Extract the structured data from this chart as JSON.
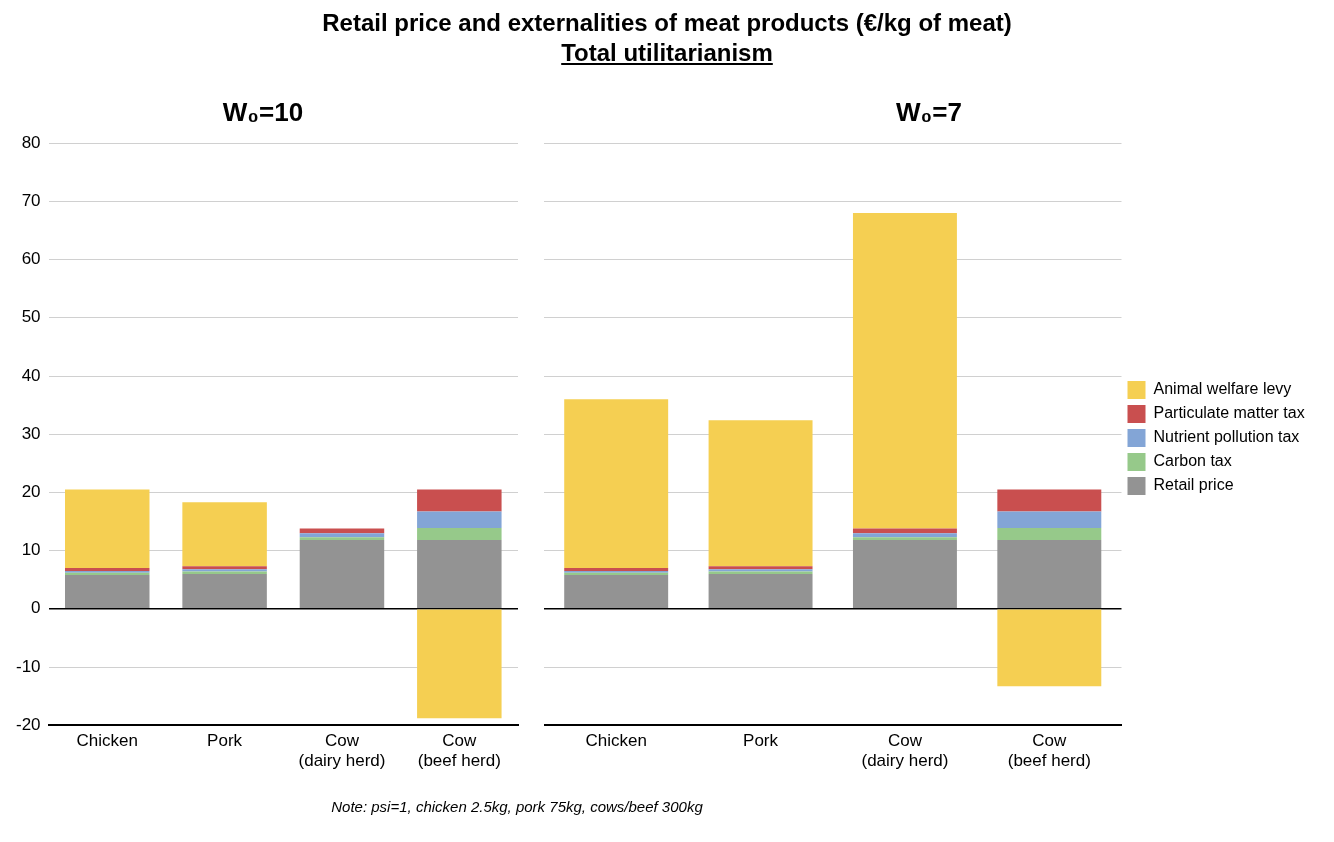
{
  "chart_data": [
    {
      "type": "other",
      "title": "Retail price and externalities of meat products (€/kg of meat)",
      "subtitle": "Total utilitarianism",
      "annotations": [
        "Note: psi=1, chicken 2.5kg, pork 75kg, cows/beef 300kg"
      ]
    },
    {
      "type": "bar",
      "title": "W₀=10",
      "stacked": true,
      "categories": [
        "Chicken",
        "Pork",
        "Cow\n(dairy herd)",
        "Cow\n(beef herd)"
      ],
      "ylim": [
        -20,
        80
      ],
      "yticks": [
        -20,
        -10,
        0,
        10,
        20,
        30,
        40,
        50,
        60,
        70,
        80
      ],
      "grid": "y",
      "series": [
        {
          "color": "#939393",
          "values": [
            5.8,
            6.0,
            11.8,
            11.8
          ]
        },
        {
          "color": "#96c98a",
          "values": [
            0.4,
            0.4,
            0.5,
            2.1
          ]
        },
        {
          "color": "#83a5d6",
          "values": [
            0.3,
            0.4,
            0.7,
            2.8
          ]
        },
        {
          "color": "#c94f4f",
          "values": [
            0.5,
            0.5,
            0.8,
            3.8
          ]
        },
        {
          "color": "#f5cf52",
          "values": [
            13.5,
            11.0,
            0,
            -18.8
          ]
        }
      ]
    },
    {
      "type": "bar",
      "title": "W₀=7",
      "stacked": true,
      "categories": [
        "Chicken",
        "Pork",
        "Cow\n(dairy herd)",
        "Cow\n(beef herd)"
      ],
      "ylim": [
        -20,
        80
      ],
      "yticks": [
        -20,
        -10,
        0,
        10,
        20,
        30,
        40,
        50,
        60,
        70,
        80
      ],
      "grid": "y",
      "tick_labels": "x",
      "legend": "right",
      "series": [
        {
          "name": "Retail price",
          "color": "#939393",
          "values": [
            5.8,
            6.0,
            11.8,
            11.8
          ]
        },
        {
          "name": "Carbon tax",
          "color": "#96c98a",
          "values": [
            0.4,
            0.4,
            0.5,
            2.1
          ]
        },
        {
          "name": "Nutrient pollution tax",
          "color": "#83a5d6",
          "values": [
            0.3,
            0.4,
            0.7,
            2.8
          ]
        },
        {
          "name": "Particulate matter tax",
          "color": "#c94f4f",
          "values": [
            0.5,
            0.5,
            0.8,
            3.8
          ]
        },
        {
          "name": "Animal welfare levy",
          "color": "#f5cf52",
          "values": [
            29.0,
            25.1,
            54.2,
            -13.3
          ]
        }
      ]
    }
  ]
}
